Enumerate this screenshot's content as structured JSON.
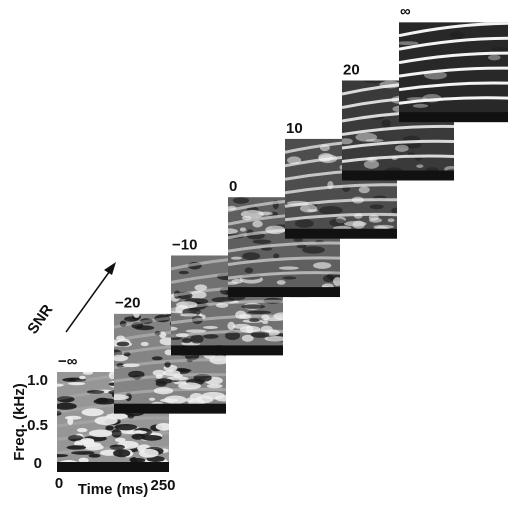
{
  "panels": [
    {
      "label": "−∞"
    },
    {
      "label": "−20"
    },
    {
      "label": "−10"
    },
    {
      "label": "0"
    },
    {
      "label": "10"
    },
    {
      "label": "20"
    },
    {
      "label": "∞"
    }
  ],
  "axes": {
    "y_label": "Freq. (kHz)",
    "y_ticks": [
      "0",
      "0.5",
      "1.0"
    ],
    "x_label": "Time (ms)",
    "x_ticks": [
      "0",
      "250"
    ],
    "arrow_label": "SNR"
  }
}
